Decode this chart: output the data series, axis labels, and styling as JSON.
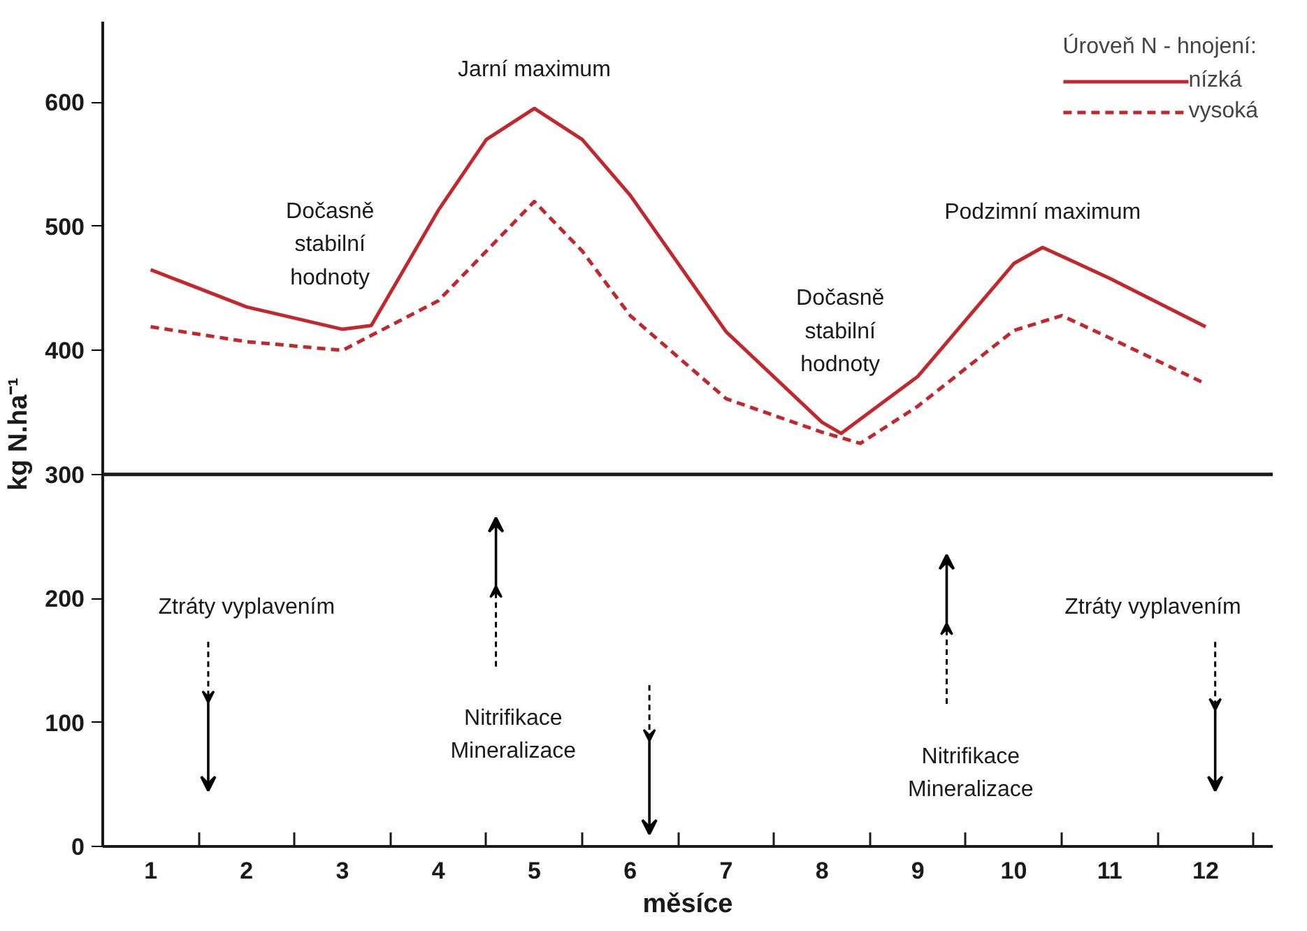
{
  "chart_data": {
    "type": "line",
    "xlabel": "měsíce",
    "ylabel": "kg N.ha⁻¹",
    "legend_title": "Úroveň N - hnojení:",
    "legend": "top right",
    "xlim": [
      0.5,
      12.7
    ],
    "ylim": [
      0,
      665
    ],
    "xticks": [
      1,
      {
        "value": 1.5,
        "label": null
      },
      2,
      {
        "value": 2.5,
        "label": null
      },
      3,
      {
        "value": 3.5,
        "label": null
      },
      4,
      {
        "value": 4.5,
        "label": null
      },
      5,
      {
        "value": 5.5,
        "label": null
      },
      6,
      {
        "value": 6.5,
        "label": null
      },
      7,
      {
        "value": 7.5,
        "label": null
      },
      8,
      {
        "value": 8.5,
        "label": null
      },
      9,
      {
        "value": 9.5,
        "label": null
      },
      10,
      {
        "value": 10.5,
        "label": null
      },
      11,
      {
        "value": 11.5,
        "label": null
      },
      12,
      {
        "value": 12.5,
        "label": null
      }
    ],
    "yticks": [
      0,
      100,
      200,
      300,
      400,
      500,
      600
    ],
    "ref_lines": [
      {
        "axis": "y",
        "value": 300,
        "color": "#1a1a1a"
      }
    ],
    "series": [
      {
        "name": "nízká",
        "color": "#c0282d",
        "line_style": "solid",
        "x": [
          1,
          2,
          3,
          3.3,
          4,
          4.5,
          5,
          5.5,
          6,
          7,
          8,
          8.2,
          9,
          10,
          10.3,
          11,
          12
        ],
        "values": [
          465,
          435,
          417,
          420,
          513,
          570,
          595,
          570,
          525,
          415,
          342,
          333,
          379,
          470,
          483,
          458,
          419
        ]
      },
      {
        "name": "vysoká",
        "color": "#c0282d",
        "line_style": "dashed",
        "x": [
          1,
          2,
          3,
          4,
          4.5,
          5,
          5.5,
          6,
          7,
          8,
          8.4,
          9,
          10,
          10.5,
          11,
          12
        ],
        "values": [
          419,
          407,
          400,
          440,
          480,
          520,
          480,
          428,
          361,
          334,
          325,
          355,
          416,
          428,
          410,
          373
        ]
      }
    ],
    "annotations": [
      "Jarní maximum",
      "Dočasně\nstabilní\nhodnoty",
      "Dočasně\nstabilní\nhodnoty",
      "Podzimní maximum",
      "Ztráty vyplavením",
      "Nitrifikace\nMineralizace",
      "Nitrifikace\nMineralizace",
      "Ztráty vyplavením"
    ]
  }
}
